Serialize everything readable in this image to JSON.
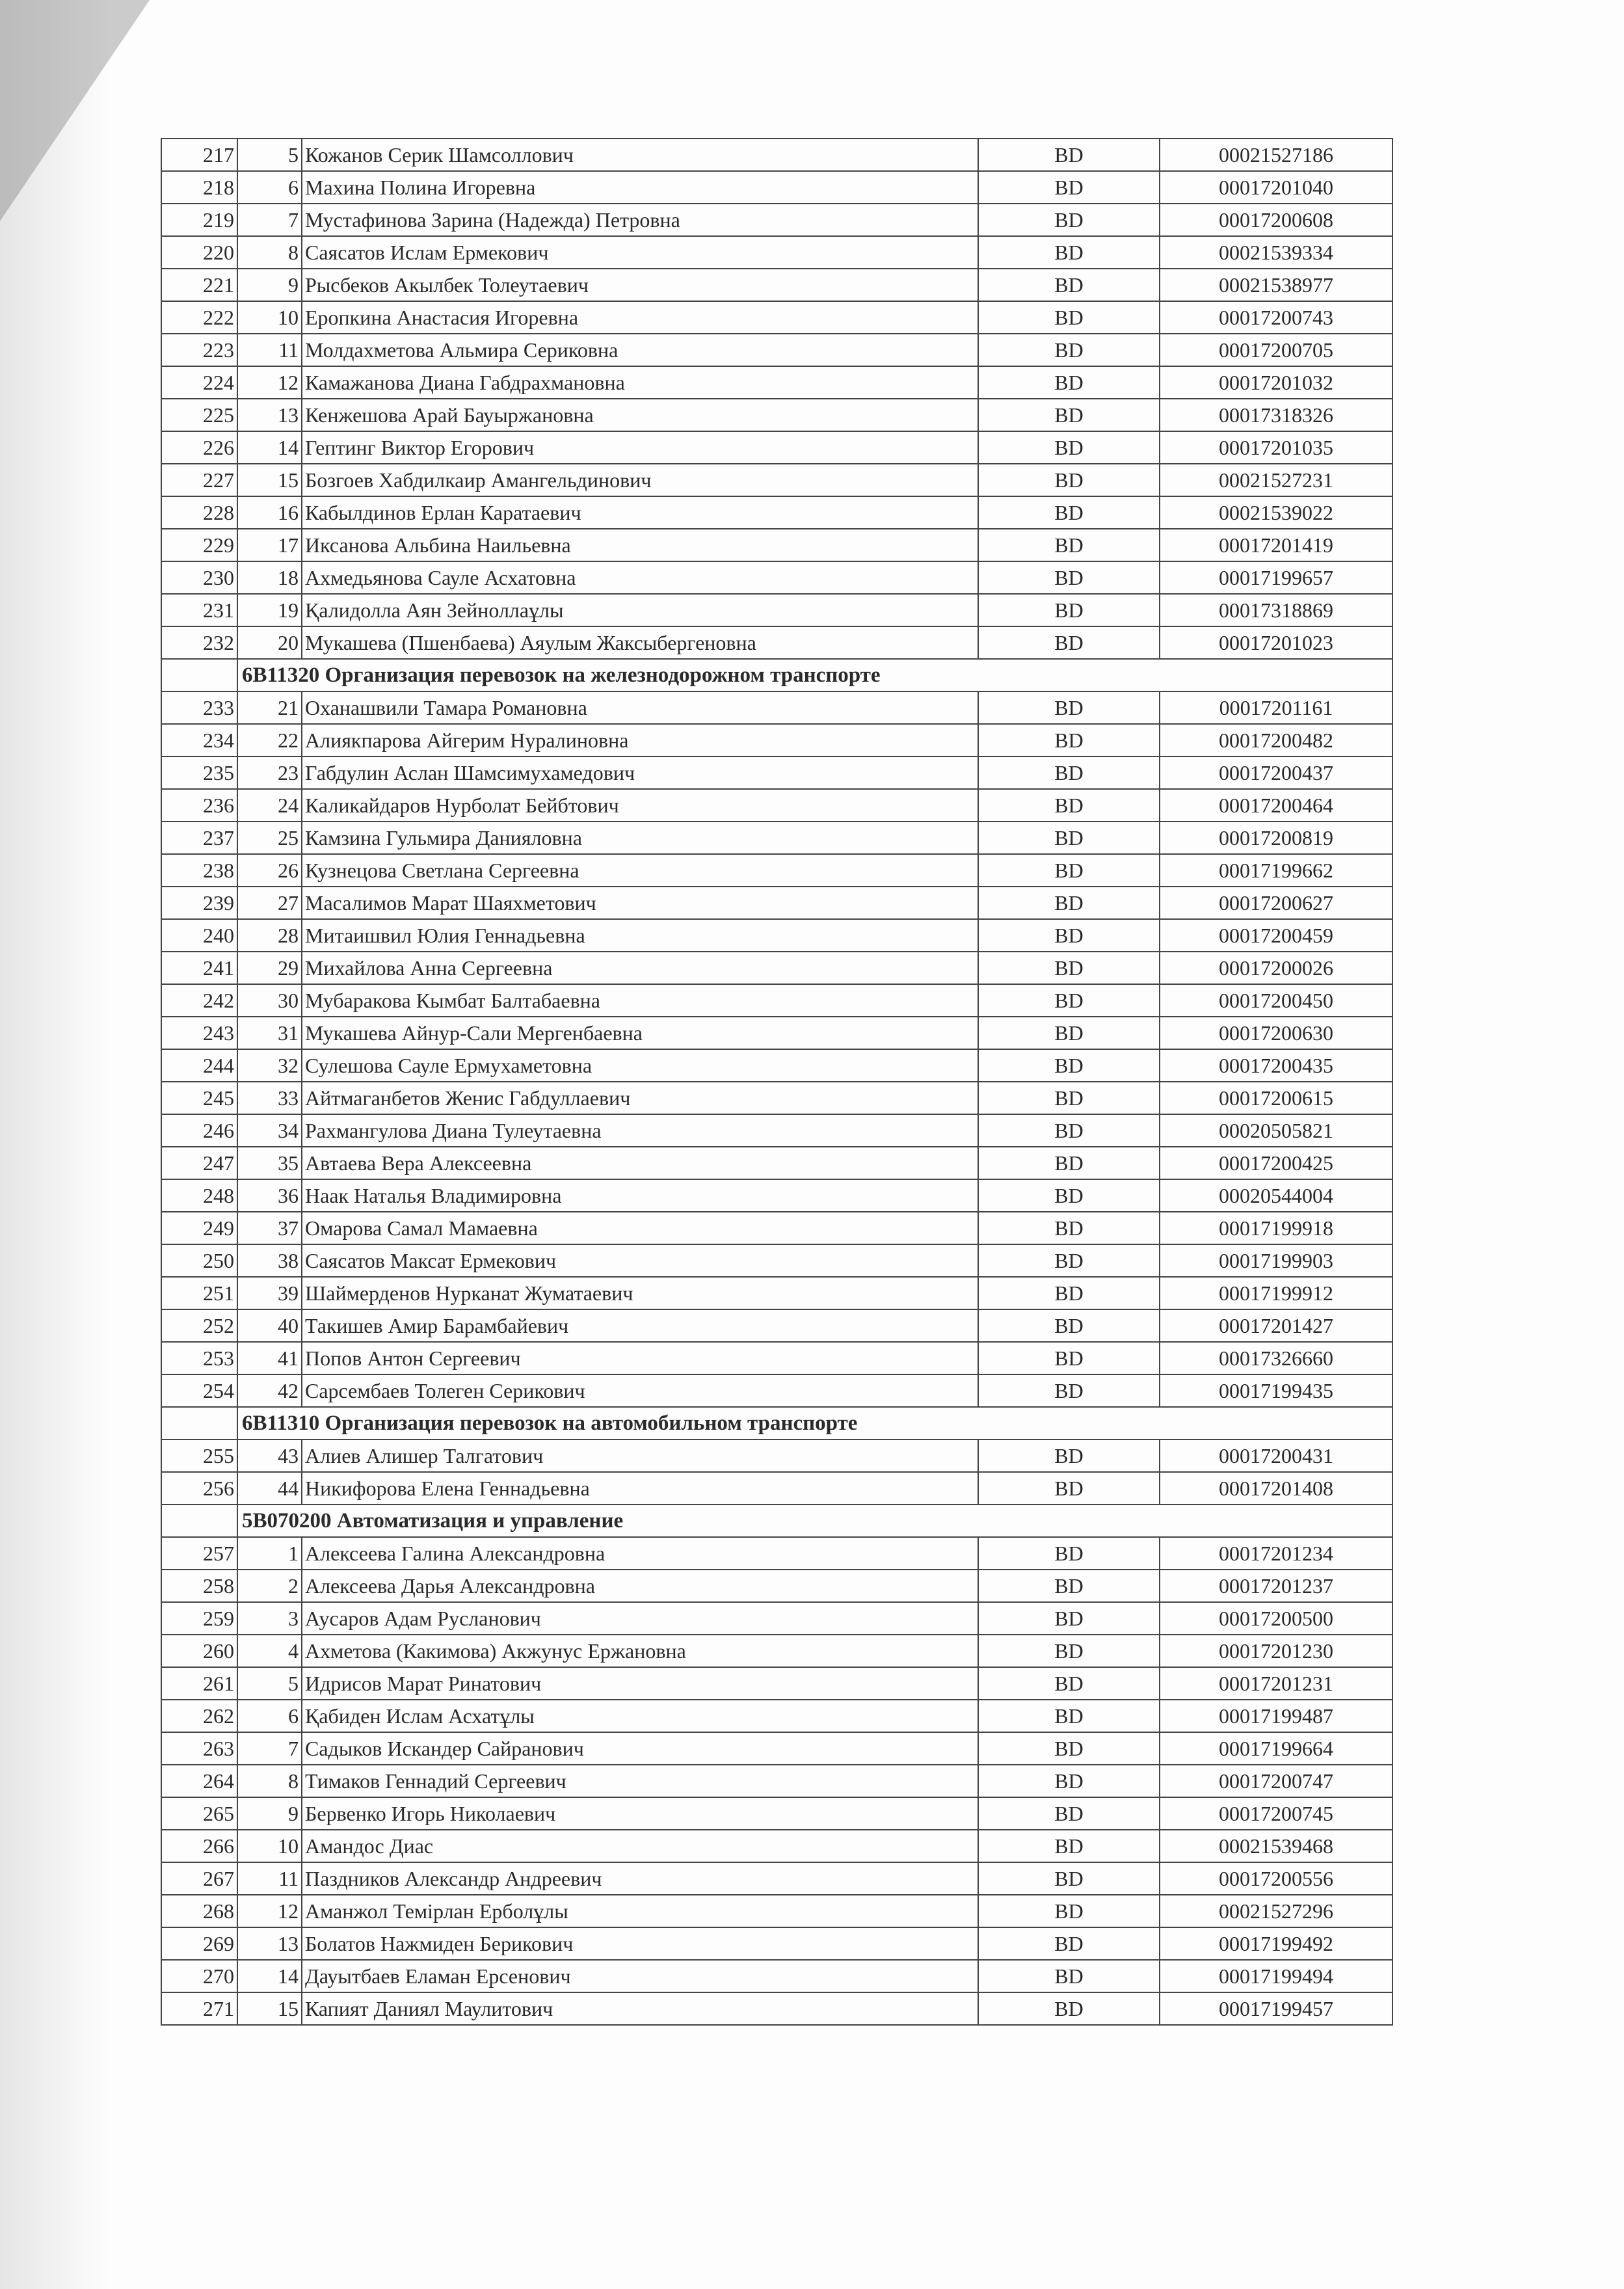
{
  "rows": [
    {
      "type": "row",
      "n": "217",
      "i": "5",
      "name": "Кожанов Серик Шамсоллович",
      "code": "BD",
      "id": "00021527186"
    },
    {
      "type": "row",
      "n": "218",
      "i": "6",
      "name": "Махина Полина Игоревна",
      "code": "BD",
      "id": "00017201040"
    },
    {
      "type": "row",
      "n": "219",
      "i": "7",
      "name": "Мустафинова Зарина (Надежда) Петровна",
      "code": "BD",
      "id": "00017200608"
    },
    {
      "type": "row",
      "n": "220",
      "i": "8",
      "name": "Саясатов Ислам Ермекович",
      "code": "BD",
      "id": "00021539334"
    },
    {
      "type": "row",
      "n": "221",
      "i": "9",
      "name": "Рысбеков Акылбек Толеутаевич",
      "code": "BD",
      "id": "00021538977"
    },
    {
      "type": "row",
      "n": "222",
      "i": "10",
      "name": "Еропкина Анастасия Игоревна",
      "code": "BD",
      "id": "00017200743"
    },
    {
      "type": "row",
      "n": "223",
      "i": "11",
      "name": "Молдахметова Альмира Сериковна",
      "code": "BD",
      "id": "00017200705"
    },
    {
      "type": "row",
      "n": "224",
      "i": "12",
      "name": "Камажанова Диана Габдрахмановна",
      "code": "BD",
      "id": "00017201032"
    },
    {
      "type": "row",
      "n": "225",
      "i": "13",
      "name": "Кенжешова Арай Бауыржановна",
      "code": "BD",
      "id": "00017318326"
    },
    {
      "type": "row",
      "n": "226",
      "i": "14",
      "name": "Гептинг Виктор Егорович",
      "code": "BD",
      "id": "00017201035"
    },
    {
      "type": "row",
      "n": "227",
      "i": "15",
      "name": "Бозгоев Хабдилкаир Амангельдинович",
      "code": "BD",
      "id": "00021527231"
    },
    {
      "type": "row",
      "n": "228",
      "i": "16",
      "name": "Кабылдинов Ерлан Каратаевич",
      "code": "BD",
      "id": "00021539022"
    },
    {
      "type": "row",
      "n": "229",
      "i": "17",
      "name": "Иксанова Альбина Наильевна",
      "code": "BD",
      "id": "00017201419"
    },
    {
      "type": "row",
      "n": "230",
      "i": "18",
      "name": "Ахмедьянова Сауле Асхатовна",
      "code": "BD",
      "id": "00017199657"
    },
    {
      "type": "row",
      "n": "231",
      "i": "19",
      "name": "Қалидолла  Аян  Зейноллаұлы",
      "code": "BD",
      "id": "00017318869"
    },
    {
      "type": "row",
      "n": "232",
      "i": "20",
      "name": "Мукашева (Пшенбаева) Аяулым Жаксыбергеновна",
      "code": "BD",
      "id": "00017201023"
    },
    {
      "type": "section",
      "title": "6B11320 Организация перевозок на железнодорожном транспорте"
    },
    {
      "type": "row",
      "n": "233",
      "i": "21",
      "name": "Оханашвили Тамара Романовна",
      "code": "BD",
      "id": "00017201161"
    },
    {
      "type": "row",
      "n": "234",
      "i": "22",
      "name": "Алиякпарова Айгерим Нуралиновна",
      "code": "BD",
      "id": "00017200482"
    },
    {
      "type": "row",
      "n": "235",
      "i": "23",
      "name": "Габдулин Аслан  Шамсимухамедович",
      "code": "BD",
      "id": "00017200437"
    },
    {
      "type": "row",
      "n": "236",
      "i": "24",
      "name": "Каликайдаров Нурболат Бейбтович",
      "code": "BD",
      "id": "00017200464"
    },
    {
      "type": "row",
      "n": "237",
      "i": "25",
      "name": "Камзина Гульмира Данияловна",
      "code": "BD",
      "id": "00017200819"
    },
    {
      "type": "row",
      "n": "238",
      "i": "26",
      "name": "Кузнецова Светлана Сергеевна",
      "code": "BD",
      "id": "00017199662"
    },
    {
      "type": "row",
      "n": "239",
      "i": "27",
      "name": "Масалимов Марат Шаяхметович",
      "code": "BD",
      "id": "00017200627"
    },
    {
      "type": "row",
      "n": "240",
      "i": "28",
      "name": "Митаишвил Юлия Геннадьевна",
      "code": "BD",
      "id": "00017200459"
    },
    {
      "type": "row",
      "n": "241",
      "i": "29",
      "name": "Михайлова Анна Сергеевна",
      "code": "BD",
      "id": "00017200026"
    },
    {
      "type": "row",
      "n": "242",
      "i": "30",
      "name": "Мубаракова Кымбат Балтабаевна",
      "code": "BD",
      "id": "00017200450"
    },
    {
      "type": "row",
      "n": "243",
      "i": "31",
      "name": "Мукашева Айнур-Сали Мергенбаевна",
      "code": "BD",
      "id": "00017200630"
    },
    {
      "type": "row",
      "n": "244",
      "i": "32",
      "name": "Сулешова Сауле Ермухаметовна",
      "code": "BD",
      "id": "00017200435"
    },
    {
      "type": "row",
      "n": "245",
      "i": "33",
      "name": "Айтмаганбетов Женис Габдуллаевич",
      "code": "BD",
      "id": "00017200615"
    },
    {
      "type": "row",
      "n": "246",
      "i": "34",
      "name": "Рахмангулова Диана Тулеутаевна",
      "code": "BD",
      "id": "00020505821"
    },
    {
      "type": "row",
      "n": "247",
      "i": "35",
      "name": "Автаева Вера Алексеевна",
      "code": "BD",
      "id": "00017200425"
    },
    {
      "type": "row",
      "n": "248",
      "i": "36",
      "name": "Наак Наталья Владимировна",
      "code": "BD",
      "id": "00020544004"
    },
    {
      "type": "row",
      "n": "249",
      "i": "37",
      "name": "Омарова Самал Мамаевна",
      "code": "BD",
      "id": "00017199918"
    },
    {
      "type": "row",
      "n": "250",
      "i": "38",
      "name": "Саясатов Максат Ермекович",
      "code": "BD",
      "id": "00017199903"
    },
    {
      "type": "row",
      "n": "251",
      "i": "39",
      "name": "Шаймерденов Нурканат Жуматаевич",
      "code": "BD",
      "id": "00017199912"
    },
    {
      "type": "row",
      "n": "252",
      "i": "40",
      "name": "Такишев Амир Барамбайевич",
      "code": "BD",
      "id": "00017201427"
    },
    {
      "type": "row",
      "n": "253",
      "i": "41",
      "name": "Попов Антон Сергеевич",
      "code": "BD",
      "id": "00017326660"
    },
    {
      "type": "row",
      "n": "254",
      "i": "42",
      "name": "Сарсембаев Толеген Серикович",
      "code": "BD",
      "id": "00017199435"
    },
    {
      "type": "section",
      "title": "6B11310 Организация перевозок на автомобильном транспорте"
    },
    {
      "type": "row",
      "n": "255",
      "i": "43",
      "name": "Алиев  Алишер Талгатович",
      "code": "BD",
      "id": "00017200431"
    },
    {
      "type": "row",
      "n": "256",
      "i": "44",
      "name": "Никифорова Елена Геннадьевна",
      "code": "BD",
      "id": "00017201408"
    },
    {
      "type": "section",
      "title": "5B070200 Автоматизация и управление"
    },
    {
      "type": "row",
      "n": "257",
      "i": "1",
      "name": "Алексеева Галина Александровна",
      "code": "BD",
      "id": "00017201234"
    },
    {
      "type": "row",
      "n": "258",
      "i": "2",
      "name": "Алексеева Дарья Александровна",
      "code": "BD",
      "id": "00017201237"
    },
    {
      "type": "row",
      "n": "259",
      "i": "3",
      "name": "Аусаров Адам Русланович",
      "code": "BD",
      "id": "00017200500"
    },
    {
      "type": "row",
      "n": "260",
      "i": "4",
      "name": "Ахметова (Какимова) Акжунус Ержановна",
      "code": "BD",
      "id": "00017201230"
    },
    {
      "type": "row",
      "n": "261",
      "i": "5",
      "name": "Идрисов Марат Ринатович",
      "code": "BD",
      "id": "00017201231"
    },
    {
      "type": "row",
      "n": "262",
      "i": "6",
      "name": "Қабиден Ислам Асхатұлы",
      "code": "BD",
      "id": "00017199487"
    },
    {
      "type": "row",
      "n": "263",
      "i": "7",
      "name": "Садыков Искандер Сайранович",
      "code": "BD",
      "id": "00017199664"
    },
    {
      "type": "row",
      "n": "264",
      "i": "8",
      "name": " Тимаков Геннадий  Сергеевич",
      "code": "BD",
      "id": "00017200747"
    },
    {
      "type": "row",
      "n": "265",
      "i": "9",
      "name": "Бервенко Игорь Николаевич",
      "code": "BD",
      "id": "00017200745"
    },
    {
      "type": "row",
      "n": "266",
      "i": "10",
      "name": "Амандос Диас",
      "code": "BD",
      "id": "00021539468"
    },
    {
      "type": "row",
      "n": "267",
      "i": "11",
      "name": "Паздников Александр Андреевич",
      "code": "BD",
      "id": "00017200556"
    },
    {
      "type": "row",
      "n": "268",
      "i": "12",
      "name": "Аманжол Темірлан Ерболұлы",
      "code": "BD",
      "id": "00021527296"
    },
    {
      "type": "row",
      "n": "269",
      "i": "13",
      "name": "Болатов Нажмиден Берикович",
      "code": "BD",
      "id": "00017199492"
    },
    {
      "type": "row",
      "n": "270",
      "i": "14",
      "name": "Дауытбаев Еламан Ерсенович",
      "code": "BD",
      "id": "00017199494"
    },
    {
      "type": "row",
      "n": "271",
      "i": "15",
      "name": "Капият Даниял Маулитович",
      "code": "BD",
      "id": "00017199457"
    }
  ]
}
